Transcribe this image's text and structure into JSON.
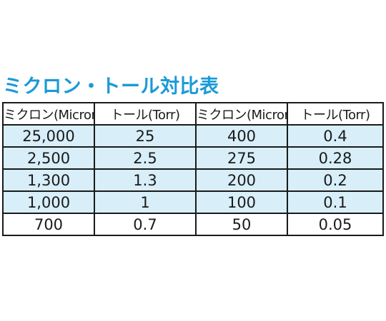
{
  "title": "ミクロン・トール対比表",
  "colors": {
    "title": "#1a9ad6",
    "shaded_row": "#d8eef9",
    "border": "#1a1a1a"
  },
  "table": {
    "headers": [
      "ミクロン(Micron)",
      "トール(Torr)",
      "ミクロン(Micron)",
      "トール(Torr)"
    ],
    "rows": [
      [
        "25,000",
        "25",
        "400",
        "0.4"
      ],
      [
        "2,500",
        "2.5",
        "275",
        "0.28"
      ],
      [
        "1,300",
        "1.3",
        "200",
        "0.2"
      ],
      [
        "1,000",
        "1",
        "100",
        "0.1"
      ],
      [
        "700",
        "0.7",
        "50",
        "0.05"
      ]
    ]
  }
}
